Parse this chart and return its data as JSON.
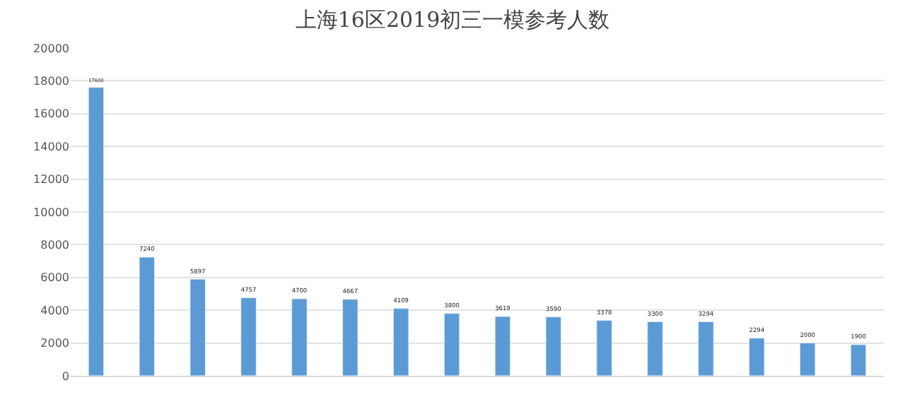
{
  "chart_data": {
    "type": "bar",
    "title": "上海16区2019初三一模参考人数",
    "categories": [
      null,
      null,
      null,
      null,
      null,
      null,
      null,
      null,
      null,
      null,
      null,
      null,
      null,
      null,
      null,
      null
    ],
    "values": [
      17600,
      7240,
      5897,
      4757,
      4700,
      4667,
      4109,
      3800,
      3619,
      3590,
      3378,
      3300,
      3294,
      2294,
      2000,
      1900
    ],
    "color": "#5b9bd5",
    "data_labels": true,
    "grid": "y",
    "ylim": [
      0,
      20000
    ],
    "yticks": [
      0,
      2000,
      4000,
      6000,
      8000,
      10000,
      12000,
      14000,
      16000,
      18000,
      20000
    ]
  }
}
